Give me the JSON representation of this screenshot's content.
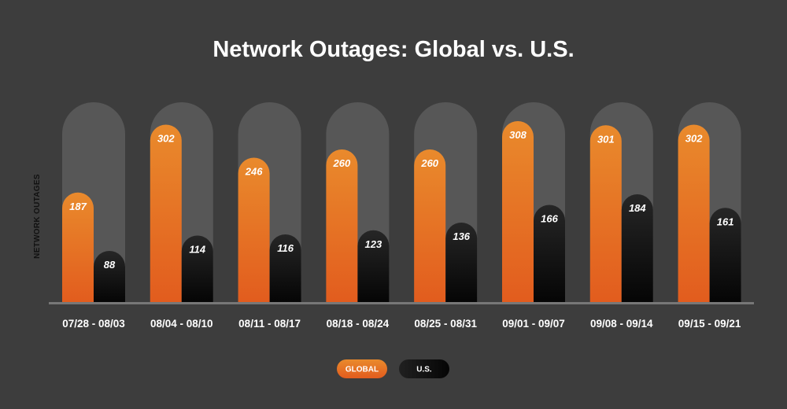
{
  "chart_data": {
    "type": "bar",
    "title": "Network Outages: Global vs. U.S.",
    "xlabel": "",
    "ylabel": "NETWORK OUTAGES",
    "ylim": [
      0,
      340
    ],
    "grid": false,
    "legend": "bottom-center",
    "categories": [
      "07/28 - 08/03",
      "08/04 - 08/10",
      "08/11 - 08/17",
      "08/18 - 08/24",
      "08/25 - 08/31",
      "09/01 - 09/07",
      "09/08 - 09/14",
      "09/15 - 09/21"
    ],
    "series": [
      {
        "name": "GLOBAL",
        "values": [
          187,
          302,
          246,
          260,
          260,
          308,
          301,
          302
        ],
        "color": "#e8762a"
      },
      {
        "name": "U.S.",
        "values": [
          88,
          114,
          116,
          123,
          136,
          166,
          184,
          161
        ],
        "color": "#141414"
      }
    ]
  },
  "colors": {
    "background": "#3d3d3d",
    "track": "#575757",
    "baseline": "#777777"
  }
}
